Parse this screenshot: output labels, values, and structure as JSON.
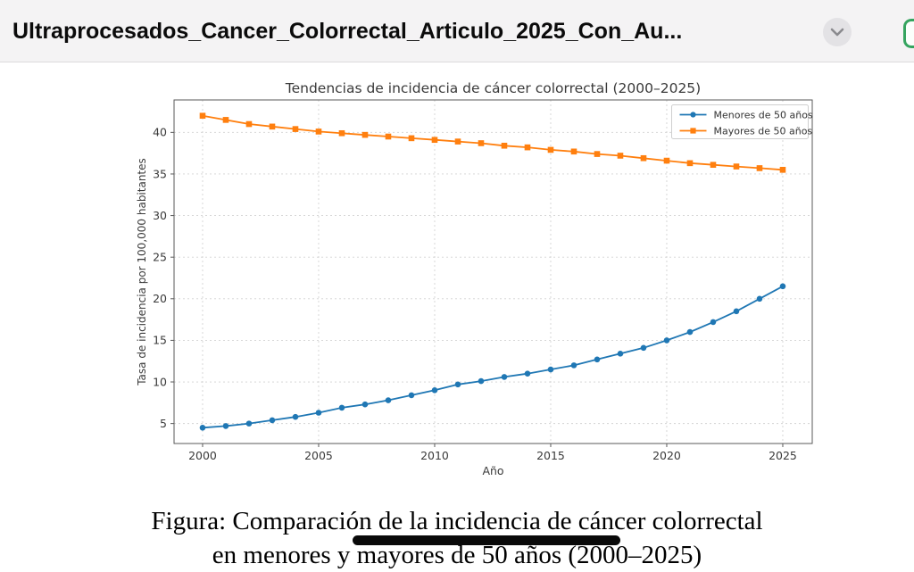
{
  "header": {
    "title": "Ultraprocesados_Cancer_Colorrectal_Articulo_2025_Con_Au...",
    "collapse_icon": "chevron-down-icon",
    "accent_green": "#35a45f"
  },
  "chart_data": {
    "type": "line",
    "title": "Tendencias de incidencia de cáncer colorrectal (2000–2025)",
    "xlabel": "Año",
    "ylabel": "Tasa de incidencia por 100,000 habitantes",
    "x": [
      2000,
      2001,
      2002,
      2003,
      2004,
      2005,
      2006,
      2007,
      2008,
      2009,
      2010,
      2011,
      2012,
      2013,
      2014,
      2015,
      2016,
      2017,
      2018,
      2019,
      2020,
      2021,
      2022,
      2023,
      2024,
      2025
    ],
    "series": [
      {
        "name": "Menores de 50 años",
        "color": "#1f77b4",
        "marker": "circle",
        "values": [
          4.5,
          4.7,
          5.0,
          5.4,
          5.8,
          6.3,
          6.9,
          7.3,
          7.8,
          8.4,
          9.0,
          9.7,
          10.1,
          10.6,
          11.0,
          11.5,
          12.0,
          12.7,
          13.4,
          14.1,
          15.0,
          16.0,
          17.2,
          18.5,
          20.0,
          21.5
        ]
      },
      {
        "name": "Mayores de 50 años",
        "color": "#ff7f0e",
        "marker": "square",
        "values": [
          42.0,
          41.5,
          41.0,
          40.7,
          40.4,
          40.1,
          39.9,
          39.7,
          39.5,
          39.3,
          39.1,
          38.9,
          38.7,
          38.4,
          38.2,
          37.9,
          37.7,
          37.4,
          37.2,
          36.9,
          36.6,
          36.3,
          36.1,
          35.9,
          35.7,
          35.5
        ]
      }
    ],
    "xticks": [
      2000,
      2005,
      2010,
      2015,
      2020,
      2025
    ],
    "yticks": [
      5,
      10,
      15,
      20,
      25,
      30,
      35,
      40
    ],
    "xlim": [
      1998.77,
      2026.27
    ],
    "ylim": [
      2.6,
      43.9
    ],
    "grid": true,
    "legend_position": "top-right",
    "text_color": "#3a3a3a",
    "grid_color": "#d2d2d2",
    "spine_color": "#5a5a5a"
  },
  "caption": {
    "line1": "Figura: Comparación de la incidencia de cáncer colorrectal",
    "line2": "en menores y mayores de 50 años (2000–2025)"
  }
}
